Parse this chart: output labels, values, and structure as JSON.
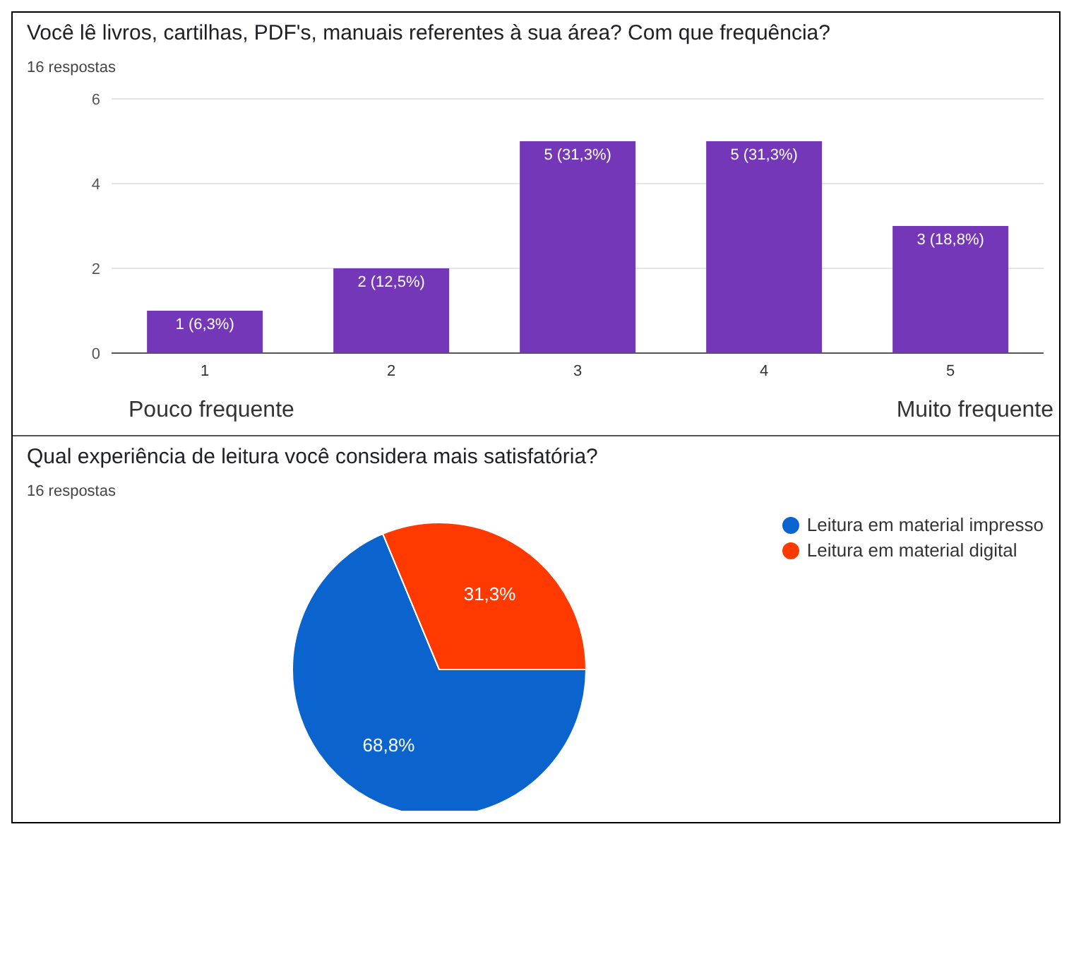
{
  "chart_data": [
    {
      "type": "bar",
      "title": "Você lê livros, cartilhas, PDF's, manuais referentes à sua área? Com que frequência?",
      "subtitle": "16 respostas",
      "categories": [
        "1",
        "2",
        "3",
        "4",
        "5"
      ],
      "values": [
        1,
        2,
        5,
        5,
        3
      ],
      "value_labels": [
        "1 (6,3%)",
        "2 (12,5%)",
        "5 (31,3%)",
        "5 (31,3%)",
        "3 (18,8%)"
      ],
      "color": "#7337b7",
      "ylim": [
        0,
        6
      ],
      "yticks": [
        0,
        2,
        4,
        6
      ],
      "grid": "y",
      "annotations": [
        "Pouco frequente",
        "Muito frequente"
      ]
    },
    {
      "type": "pie",
      "title": "Qual experiência de leitura você considera mais satisfatória?",
      "subtitle": "16 respostas",
      "categories": [
        "Leitura em material impresso",
        "Leitura em material digital"
      ],
      "values": [
        68.8,
        31.3
      ],
      "value_labels": [
        "68,8%",
        "31,3%"
      ],
      "colors": [
        "#0b63ce",
        "#ff3a00"
      ],
      "legend": "top right"
    }
  ]
}
